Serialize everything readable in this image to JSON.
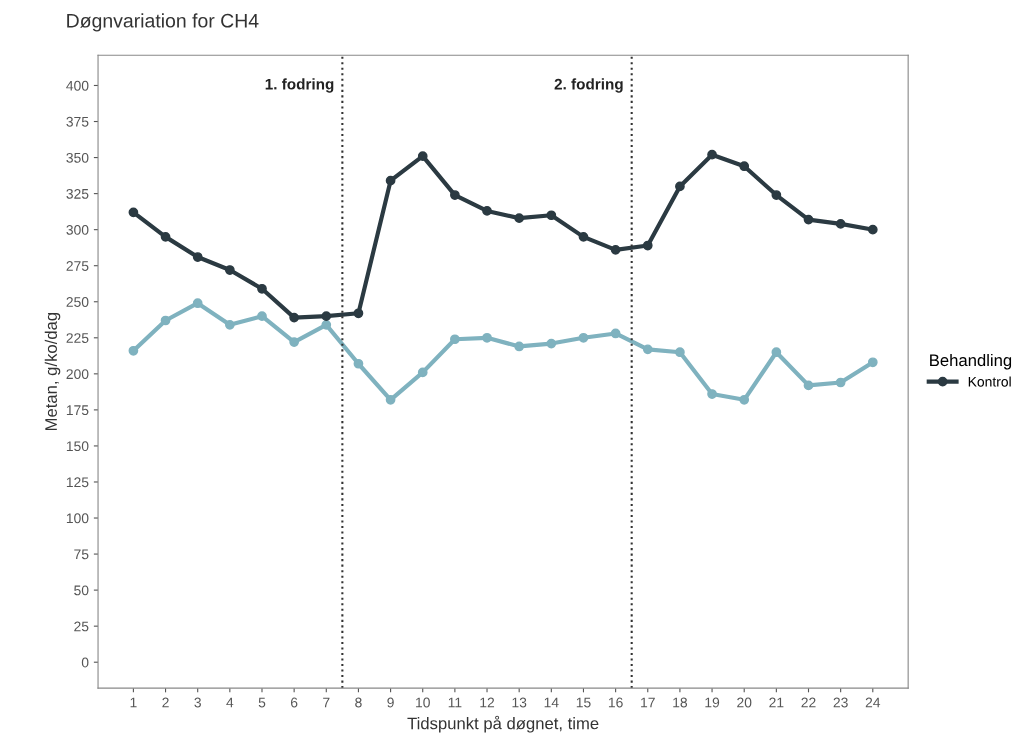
{
  "chart_data": {
    "type": "line",
    "title": "Døgnvariation for CH4",
    "xlabel": "Tidspunkt på døgnet, time",
    "ylabel": "Metan, g/ko/dag",
    "legend_title": "Behandling",
    "x": [
      1,
      2,
      3,
      4,
      5,
      6,
      7,
      8,
      9,
      10,
      11,
      12,
      13,
      14,
      15,
      16,
      17,
      18,
      19,
      20,
      21,
      22,
      23,
      24
    ],
    "series": [
      {
        "color": "#7fb2bf",
        "values": [
          216,
          237,
          249,
          234,
          240,
          222,
          234,
          207,
          182,
          201,
          224,
          225,
          219,
          221,
          225,
          228,
          217,
          215,
          186,
          182,
          215,
          192,
          194,
          208
        ]
      },
      {
        "name": "Kontrol",
        "color": "#2b3a42",
        "values": [
          312,
          295,
          281,
          272,
          259,
          239,
          240,
          242,
          334,
          351,
          324,
          313,
          308,
          310,
          295,
          286,
          289,
          330,
          352,
          344,
          324,
          307,
          304,
          300
        ]
      }
    ],
    "xlim": [
      -0.1,
      25.1
    ],
    "xticks": [
      1,
      2,
      3,
      4,
      5,
      6,
      7,
      8,
      9,
      10,
      11,
      12,
      13,
      14,
      15,
      16,
      17,
      18,
      19,
      20,
      21,
      22,
      23,
      24
    ],
    "ylim": [
      -18,
      421
    ],
    "yticks": [
      0,
      25,
      50,
      75,
      100,
      125,
      150,
      175,
      200,
      225,
      250,
      275,
      300,
      325,
      350,
      375,
      400
    ],
    "ref_lines": [
      {
        "axis": "x",
        "value": 7.5,
        "label": "1. fodring",
        "color": "#333333",
        "line_style": "dotted"
      },
      {
        "axis": "x",
        "value": 16.5,
        "label": "2. fodring",
        "color": "#333333",
        "line_style": "dotted"
      }
    ],
    "marker": "circle",
    "line_style": "solid",
    "grid": false,
    "legend": "right"
  }
}
